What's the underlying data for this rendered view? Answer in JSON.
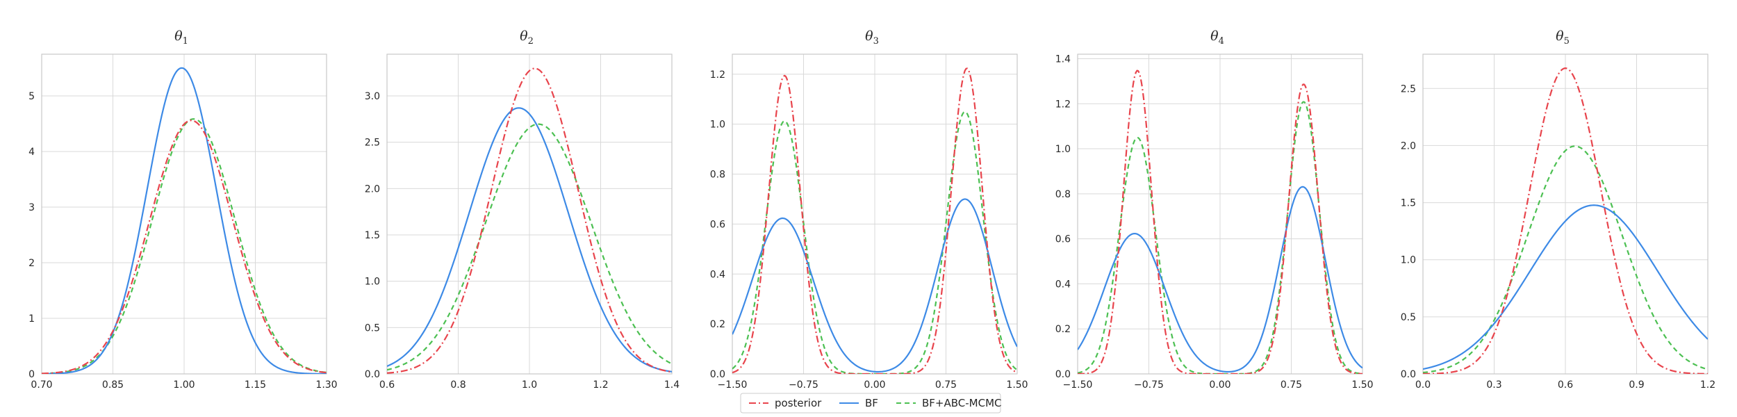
{
  "colors": {
    "posterior": "#e8444c",
    "bf": "#3d8ae6",
    "bf_abc": "#4cc052",
    "grid": "#d9d9d9",
    "frame": "#c8c8c8",
    "text": "#262626"
  },
  "legend": {
    "location": "bottom-center",
    "entries": [
      {
        "label": "posterior",
        "style": "dashdot",
        "color_key": "posterior"
      },
      {
        "label": "BF",
        "style": "solid",
        "color_key": "bf"
      },
      {
        "label": "BF+ABC-MCMC",
        "style": "dashed",
        "color_key": "bf_abc"
      }
    ]
  },
  "chart_data": [
    {
      "type": "line",
      "title": "θ",
      "title_sub": "1",
      "xlim": [
        0.7,
        1.3
      ],
      "ylim": [
        0,
        5.75
      ],
      "xticks": [
        0.7,
        0.85,
        1.0,
        1.15,
        1.3
      ],
      "xtick_labels": [
        "0.70",
        "0.85",
        "1.00",
        "1.15",
        "1.30"
      ],
      "yticks": [
        0,
        1,
        2,
        3,
        4,
        5
      ],
      "ytick_labels": [
        "0",
        "1",
        "2",
        "3",
        "4",
        "5"
      ],
      "series": [
        {
          "name": "posterior",
          "components": [
            {
              "w": 1,
              "mu": 1.015,
              "sigma": 0.0875
            }
          ]
        },
        {
          "name": "BF",
          "components": [
            {
              "w": 1,
              "mu": 0.995,
              "sigma": 0.0725
            }
          ]
        },
        {
          "name": "BF+ABC-MCMC",
          "components": [
            {
              "w": 1,
              "mu": 1.02,
              "sigma": 0.087
            }
          ]
        }
      ]
    },
    {
      "type": "line",
      "title": "θ",
      "title_sub": "2",
      "xlim": [
        0.6,
        1.4
      ],
      "ylim": [
        0,
        3.45
      ],
      "xticks": [
        0.6,
        0.8,
        1.0,
        1.2,
        1.4
      ],
      "xtick_labels": [
        "0.6",
        "0.8",
        "1.0",
        "1.2",
        "1.4"
      ],
      "yticks": [
        0,
        0.5,
        1.0,
        1.5,
        2.0,
        2.5,
        3.0
      ],
      "ytick_labels": [
        "0.0",
        "0.5",
        "1.0",
        "1.5",
        "2.0",
        "2.5",
        "3.0"
      ],
      "series": [
        {
          "name": "posterior",
          "components": [
            {
              "w": 1,
              "mu": 1.015,
              "sigma": 0.121
            }
          ]
        },
        {
          "name": "BF",
          "components": [
            {
              "w": 1,
              "mu": 0.97,
              "sigma": 0.139
            }
          ]
        },
        {
          "name": "BF+ABC-MCMC",
          "components": [
            {
              "w": 1,
              "mu": 1.025,
              "sigma": 0.148
            }
          ]
        }
      ]
    },
    {
      "type": "line",
      "title": "θ",
      "title_sub": "3",
      "xlim": [
        -1.5,
        1.5
      ],
      "ylim": [
        0,
        1.28
      ],
      "xticks": [
        -1.5,
        -0.75,
        0.0,
        0.75,
        1.5
      ],
      "xtick_labels": [
        "−1.50",
        "−0.75",
        "0.00",
        "0.75",
        "1.50"
      ],
      "yticks": [
        0,
        0.2,
        0.4,
        0.6,
        0.8,
        1.0,
        1.2
      ],
      "ytick_labels": [
        "0.0",
        "0.2",
        "0.4",
        "0.6",
        "0.8",
        "1.0",
        "1.2"
      ],
      "series": [
        {
          "name": "posterior",
          "components": [
            {
              "w": 0.5,
              "mu": -0.95,
              "sigma": 0.167
            },
            {
              "w": 0.5,
              "mu": 0.97,
              "sigma": 0.163
            }
          ]
        },
        {
          "name": "BF",
          "components": [
            {
              "w": 0.5,
              "mu": -0.97,
              "sigma": 0.32
            },
            {
              "w": 0.5,
              "mu": 0.95,
              "sigma": 0.285
            }
          ]
        },
        {
          "name": "BF+ABC-MCMC",
          "components": [
            {
              "w": 0.5,
              "mu": -0.95,
              "sigma": 0.197
            },
            {
              "w": 0.5,
              "mu": 0.95,
              "sigma": 0.19
            }
          ]
        }
      ]
    },
    {
      "type": "line",
      "title": "θ",
      "title_sub": "4",
      "xlim": [
        -1.5,
        1.5
      ],
      "ylim": [
        0,
        1.42
      ],
      "xticks": [
        -1.5,
        -0.75,
        0.0,
        0.75,
        1.5
      ],
      "xtick_labels": [
        "−1.50",
        "−0.75",
        "0.00",
        "0.75",
        "1.50"
      ],
      "yticks": [
        0,
        0.2,
        0.4,
        0.6,
        0.8,
        1.0,
        1.2,
        1.4
      ],
      "ytick_labels": [
        "0.0",
        "0.2",
        "0.4",
        "0.6",
        "0.8",
        "1.0",
        "1.2",
        "1.4"
      ],
      "series": [
        {
          "name": "posterior",
          "components": [
            {
              "w": 0.5,
              "mu": -0.87,
              "sigma": 0.148
            },
            {
              "w": 0.5,
              "mu": 0.88,
              "sigma": 0.155
            }
          ]
        },
        {
          "name": "BF",
          "components": [
            {
              "w": 0.5,
              "mu": -0.9,
              "sigma": 0.32
            },
            {
              "w": 0.5,
              "mu": 0.87,
              "sigma": 0.24
            }
          ]
        },
        {
          "name": "BF+ABC-MCMC",
          "components": [
            {
              "w": 0.5,
              "mu": -0.87,
              "sigma": 0.19
            },
            {
              "w": 0.5,
              "mu": 0.88,
              "sigma": 0.165
            }
          ]
        }
      ]
    },
    {
      "type": "line",
      "title": "θ",
      "title_sub": "5",
      "xlim": [
        0.0,
        1.2
      ],
      "ylim": [
        0,
        2.8
      ],
      "xticks": [
        0.0,
        0.3,
        0.6,
        0.9,
        1.2
      ],
      "xtick_labels": [
        "0.0",
        "0.3",
        "0.6",
        "0.9",
        "1.2"
      ],
      "yticks": [
        0,
        0.5,
        1.0,
        1.5,
        2.0,
        2.5
      ],
      "ytick_labels": [
        "0.0",
        "0.5",
        "1.0",
        "1.5",
        "2.0",
        "2.5"
      ],
      "series": [
        {
          "name": "posterior",
          "components": [
            {
              "w": 1,
              "mu": 0.6,
              "sigma": 0.149
            }
          ]
        },
        {
          "name": "BF",
          "components": [
            {
              "w": 1,
              "mu": 0.72,
              "sigma": 0.27
            }
          ]
        },
        {
          "name": "BF+ABC-MCMC",
          "components": [
            {
              "w": 1,
              "mu": 0.64,
              "sigma": 0.2
            }
          ]
        }
      ]
    }
  ]
}
